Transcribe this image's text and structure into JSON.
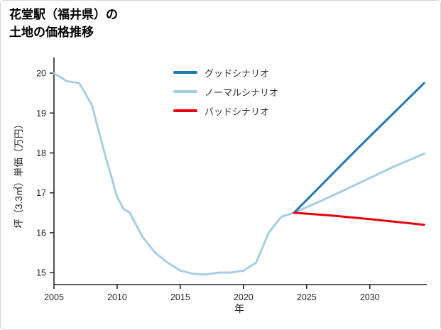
{
  "page": {
    "title_line1": "花堂駅（福井県）の",
    "title_line2": "土地の価格推移"
  },
  "chart_data": {
    "type": "line",
    "title": "花堂駅（福井県）の土地の価格推移",
    "xlabel": "年",
    "ylabel": "坪（3.3㎡）単価（万円）",
    "xlim": [
      2005,
      2034.4
    ],
    "ylim": [
      14.7,
      20.25
    ],
    "xticks": [
      2005,
      2010,
      2015,
      2020,
      2025,
      2030
    ],
    "yticks": [
      15,
      16,
      17,
      18,
      19,
      20
    ],
    "grid": false,
    "legend_position": "top-center-inside",
    "series": [
      {
        "name": "グッドシナリオ",
        "color": "#1f77b4",
        "width": 3,
        "z": 2,
        "x": [
          2024,
          2029,
          2034.3
        ],
        "y": [
          16.5,
          18.1,
          19.75
        ]
      },
      {
        "name": "ノーマルシナリオ",
        "color": "#a6cee3",
        "width": 3,
        "z": 1,
        "x": [
          2005,
          2006,
          2007,
          2008,
          2009,
          2010,
          2010.5,
          2011,
          2012,
          2013,
          2014,
          2015,
          2016,
          2017,
          2018,
          2019,
          2020,
          2021,
          2022,
          2023,
          2024,
          2026,
          2028,
          2030,
          2032,
          2034.3
        ],
        "y": [
          20.0,
          19.8,
          19.75,
          19.2,
          18.0,
          16.9,
          16.6,
          16.5,
          15.9,
          15.5,
          15.25,
          15.05,
          14.97,
          14.95,
          15.0,
          15.0,
          15.05,
          15.25,
          16.0,
          16.4,
          16.5,
          16.78,
          17.07,
          17.37,
          17.67,
          17.98
        ]
      },
      {
        "name": "バッドシナリオ",
        "color": "#e8000b",
        "width": 3,
        "z": 3,
        "x": [
          2024,
          2027,
          2030,
          2034.3
        ],
        "y": [
          16.5,
          16.43,
          16.34,
          16.2
        ]
      }
    ]
  }
}
